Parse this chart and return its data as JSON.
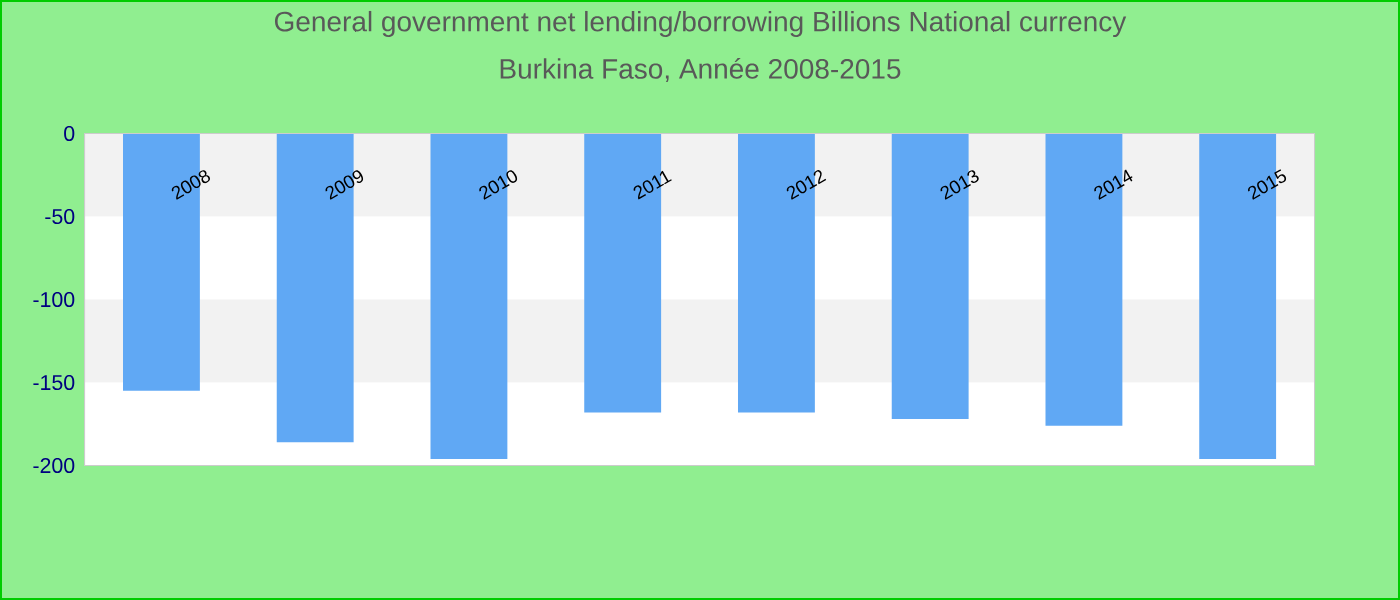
{
  "chart_data": {
    "type": "bar",
    "title": "General government net lending/borrowing Billions National currency",
    "subtitle": "Burkina Faso, Année 2008-2015",
    "categories": [
      "2008",
      "2009",
      "2010",
      "2011",
      "2012",
      "2013",
      "2014",
      "2015"
    ],
    "values": [
      -155,
      -186,
      -196,
      -168,
      -168,
      -172,
      -176,
      -196
    ],
    "color": "#60a8f4",
    "ylim": [
      -200,
      0
    ],
    "yticks": [
      -200,
      -150,
      -100,
      -50,
      0
    ],
    "bands": [
      {
        "axis": "y",
        "from": -50,
        "to": 0,
        "color": "#f2f2f2"
      },
      {
        "axis": "y",
        "from": -150,
        "to": -100,
        "color": "#f2f2f2"
      }
    ]
  }
}
